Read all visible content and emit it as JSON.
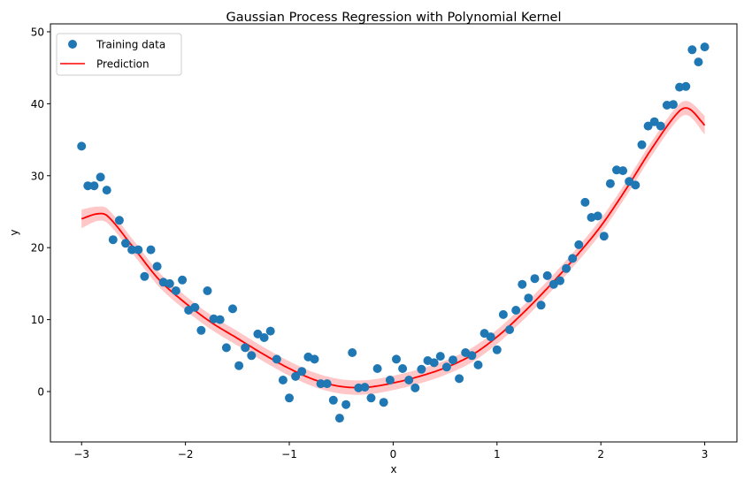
{
  "chart_data": {
    "type": "scatter",
    "title": "Gaussian Process Regression with Polynomial Kernel",
    "xlabel": "x",
    "ylabel": "y",
    "xlim": [
      -3.3,
      3.31
    ],
    "ylim": [
      -7.0,
      51.1
    ],
    "xticks": [
      -3,
      -2,
      -1,
      0,
      1,
      2,
      3
    ],
    "yticks": [
      0,
      10,
      20,
      30,
      40,
      50
    ],
    "grid": false,
    "legend": {
      "position": "top-left",
      "entries": [
        "Training data",
        "Prediction"
      ]
    },
    "colors": {
      "training": "#1f77b4",
      "prediction": "#ff0000",
      "band": "#ff9999"
    },
    "series": [
      {
        "name": "Training data",
        "kind": "scatter",
        "x_start": -3,
        "x_end": 3,
        "y": [
          34.1,
          28.6,
          28.6,
          29.8,
          28.0,
          21.1,
          23.8,
          20.6,
          19.7,
          19.7,
          16.0,
          19.7,
          17.4,
          15.2,
          15.0,
          14.0,
          15.5,
          11.3,
          11.7,
          8.5,
          14.0,
          10.1,
          10.0,
          6.1,
          11.5,
          3.6,
          6.1,
          5.0,
          8.0,
          7.5,
          8.4,
          4.5,
          1.6,
          -0.9,
          2.1,
          2.8,
          4.8,
          4.5,
          1.1,
          1.1,
          -1.2,
          -3.7,
          -1.8,
          5.4,
          0.5,
          0.6,
          -0.9,
          3.2,
          -1.5,
          1.6,
          4.5,
          3.2,
          1.6,
          0.5,
          3.1,
          4.3,
          4.0,
          4.9,
          3.4,
          4.4,
          1.8,
          5.4,
          5.0,
          3.7,
          8.1,
          7.6,
          5.8,
          10.7,
          8.6,
          11.3,
          14.9,
          13.0,
          15.7,
          12.0,
          16.1,
          14.9,
          15.4,
          17.1,
          18.5,
          20.4,
          26.3,
          24.2,
          24.4,
          21.6,
          28.9,
          30.8,
          30.7,
          29.2,
          28.7,
          34.3,
          36.9,
          37.5,
          36.9,
          39.8,
          39.9,
          42.3,
          42.4,
          47.5,
          45.8,
          47.9
        ]
      },
      {
        "name": "Prediction",
        "kind": "line",
        "x": [
          -3,
          -2.85,
          -2.75,
          -2.5,
          -2.25,
          -2,
          -1.75,
          -1.5,
          -1.25,
          -1,
          -0.75,
          -0.5,
          -0.25,
          0,
          0.25,
          0.5,
          0.75,
          1,
          1.25,
          1.5,
          1.75,
          2,
          2.25,
          2.5,
          2.75,
          2.85,
          3
        ],
        "y": [
          24.0,
          24.7,
          24.4,
          20.0,
          15.5,
          12.3,
          9.6,
          7.4,
          5.2,
          3.2,
          1.6,
          0.7,
          0.6,
          1.2,
          2.1,
          3.3,
          5.0,
          7.6,
          10.9,
          14.6,
          18.6,
          23.0,
          28.3,
          34.0,
          38.9,
          39.3,
          37.0
        ],
        "band": [
          1.3,
          1.0,
          1.0,
          1.0,
          1.0,
          1.0,
          1.0,
          1.0,
          1.0,
          1.0,
          1.0,
          1.0,
          1.0,
          1.0,
          1.0,
          1.0,
          1.0,
          1.0,
          1.0,
          1.0,
          1.0,
          1.0,
          1.0,
          1.0,
          1.0,
          1.0,
          1.3
        ]
      }
    ]
  }
}
